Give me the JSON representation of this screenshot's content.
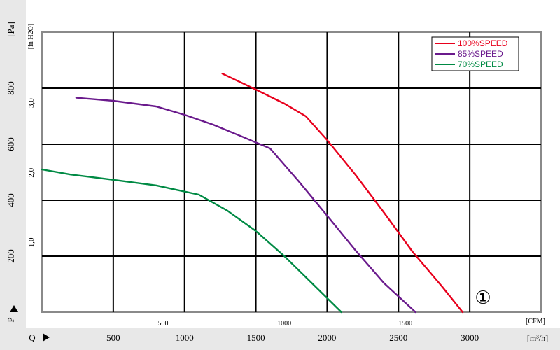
{
  "chart_data": {
    "type": "line",
    "title": "",
    "xlabel_primary": "[m³/h]",
    "xlabel_secondary": "[CFM]",
    "ylabel_primary": "[Pa]",
    "ylabel_secondary": "[in H2O]",
    "pressure_symbol": "P",
    "flow_symbol": "Q",
    "annotation": "①",
    "xlim": [
      0,
      3500
    ],
    "ylim": [
      0,
      1000
    ],
    "grid": true,
    "legend_position": "top-right",
    "x_ticks_m3h": [
      "500",
      "1000",
      "1500",
      "2000",
      "2500",
      "3000"
    ],
    "x_ticks_cfm": [
      "500",
      "1000",
      "1500"
    ],
    "y_ticks_pa": [
      "200",
      "400",
      "600",
      "800"
    ],
    "y_ticks_inh2o": [
      "1,0",
      "2,0",
      "3,0"
    ],
    "series": [
      {
        "name": "100%SPEED",
        "color": "#e8001c",
        "x": [
          1265,
          1500,
          1700,
          1850,
          2000,
          2200,
          2400,
          2600,
          2800,
          2950
        ],
        "y": [
          852,
          795,
          745,
          700,
          615,
          490,
          355,
          215,
          95,
          0
        ]
      },
      {
        "name": "85%SPEED",
        "color": "#6a1a8c",
        "x": [
          240,
          500,
          800,
          1000,
          1200,
          1400,
          1600,
          1800,
          2000,
          2200,
          2400,
          2620
        ],
        "y": [
          766,
          755,
          735,
          705,
          670,
          628,
          585,
          468,
          345,
          220,
          103,
          0
        ]
      },
      {
        "name": "70%SPEED",
        "color": "#008a44",
        "x": [
          0,
          200,
          500,
          800,
          1100,
          1300,
          1500,
          1700,
          1900,
          2100
        ],
        "y": [
          510,
          492,
          473,
          453,
          420,
          363,
          290,
          200,
          100,
          0
        ]
      }
    ]
  }
}
